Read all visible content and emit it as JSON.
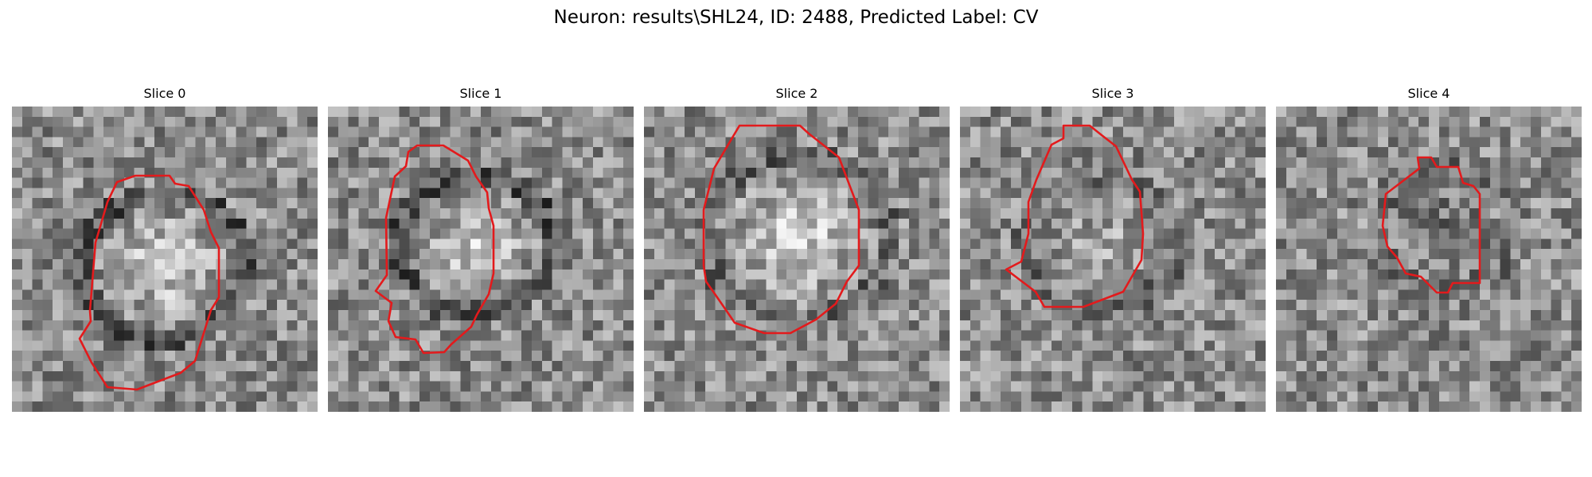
{
  "figure": {
    "suptitle": "Neuron: results\\SHL24, ID: 2488, Predicted Label: CV",
    "contour_color": "#e31a1c",
    "colormap": "gray"
  },
  "slices": [
    {
      "title": "Slice 0"
    },
    {
      "title": "Slice 1"
    },
    {
      "title": "Slice 2"
    },
    {
      "title": "Slice 3"
    },
    {
      "title": "Slice 4"
    }
  ]
}
